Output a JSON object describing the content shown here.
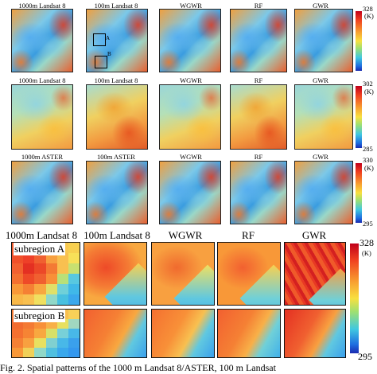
{
  "rows": [
    {
      "titles": [
        "1000m Landsat 8",
        "100m Landsat 8",
        "WGWR",
        "RF",
        "GWR"
      ],
      "cbar": {
        "max": "328",
        "unit": "(K)",
        "min": ""
      },
      "box_labels": [
        "A",
        "B"
      ]
    },
    {
      "titles": [
        "1000m Landsat 8",
        "100m Landsat 8",
        "WGWR",
        "RF",
        "GWR"
      ],
      "cbar": {
        "max": "302",
        "unit": "(K)",
        "min": "285"
      }
    },
    {
      "titles": [
        "1000m ASTER",
        "100m ASTER",
        "WGWR",
        "RF",
        "GWR"
      ],
      "cbar": {
        "max": "330",
        "unit": "(K)",
        "min": "295"
      }
    }
  ],
  "subregions": {
    "titles": [
      "1000m Landsat 8",
      "100m Landsat 8",
      "WGWR",
      "RF",
      "GWR"
    ],
    "labels": [
      "subregion A",
      "subregion B"
    ],
    "cbar": {
      "max": "328",
      "unit": "(K)",
      "min": "295"
    }
  },
  "caption": "Fig. 2.    Spatial patterns of the 1000 m Landsat 8/ASTER, 100 m Landsat"
}
